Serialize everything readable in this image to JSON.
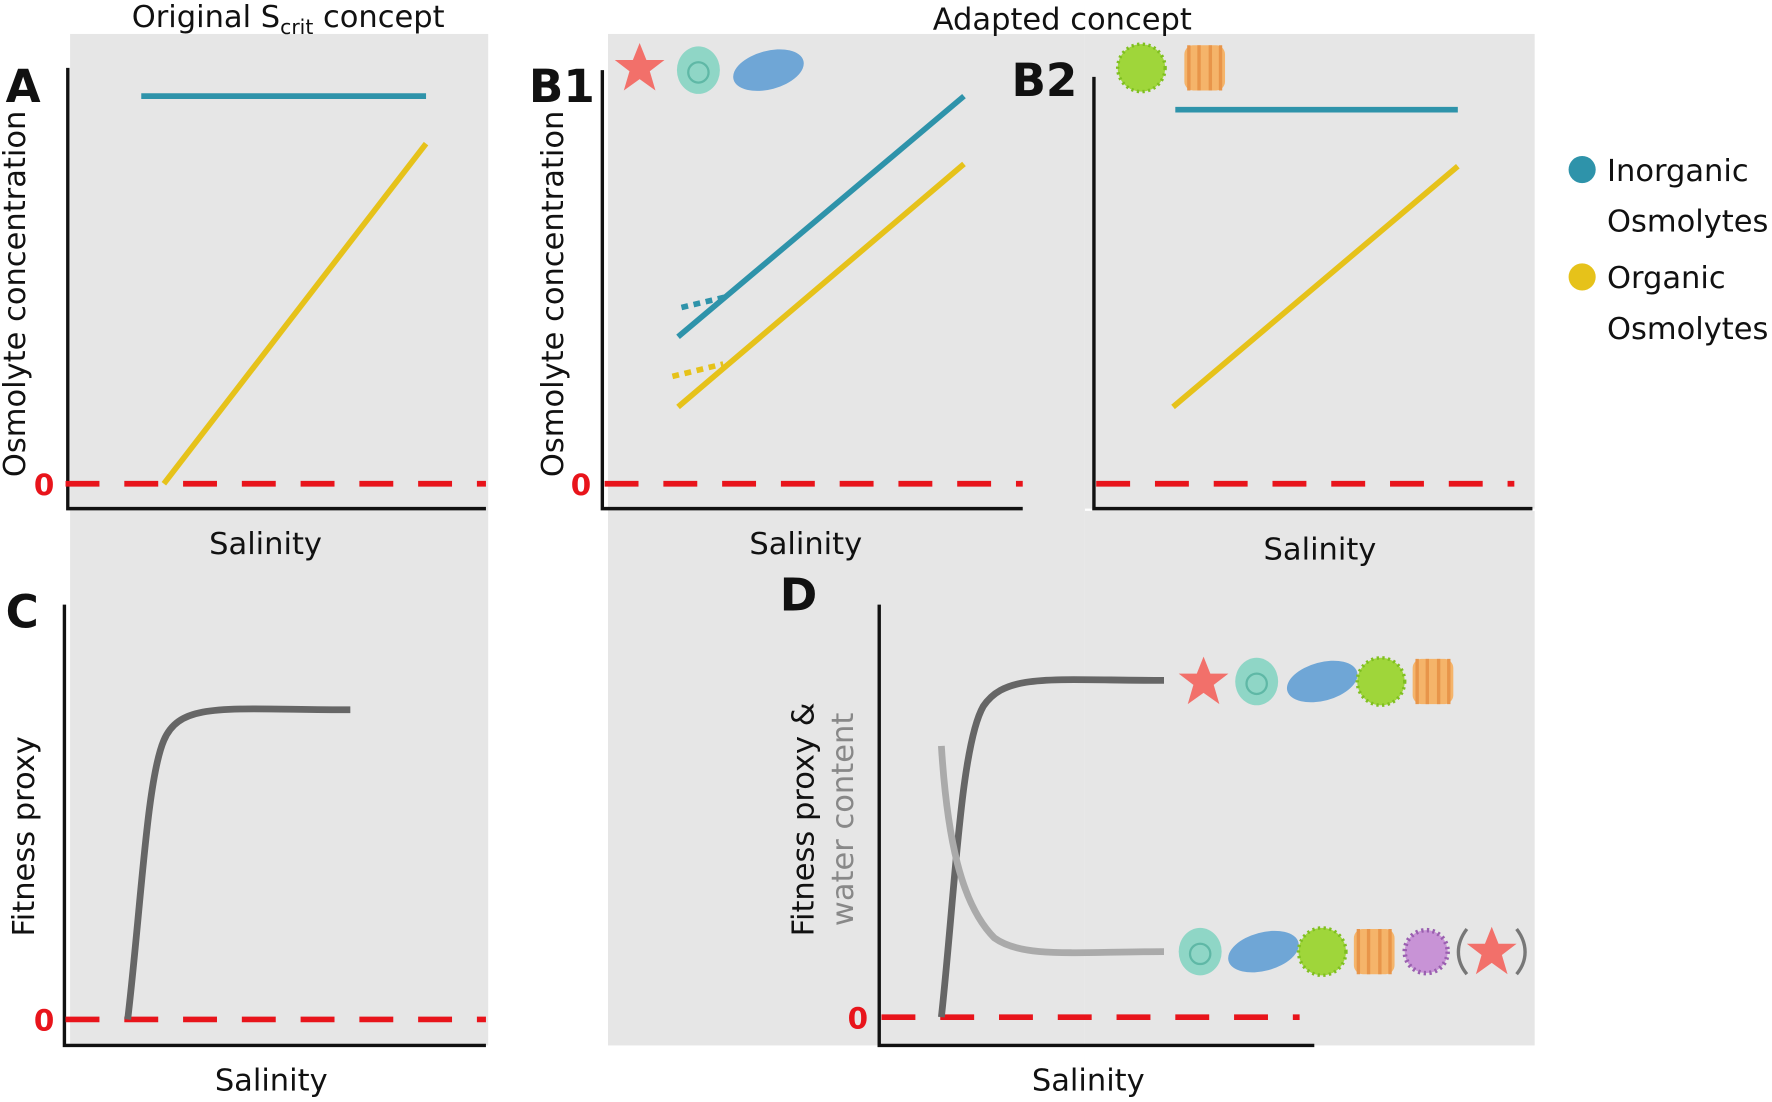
{
  "headers": {
    "left": {
      "main": "Original S",
      "sub": "crit",
      "rest": " concept"
    },
    "right": "Adapted concept"
  },
  "panels": {
    "A": {
      "label": "A",
      "y_label": "Osmolyte concentration",
      "x_label": "Salinity",
      "zero": "0"
    },
    "B1": {
      "label": "B1",
      "y_label": "Osmolyte concentration",
      "x_label": "Salinity",
      "zero": "0"
    },
    "B2": {
      "label": "B2",
      "x_label": "Salinity"
    },
    "C": {
      "label": "C",
      "y_label": "Fitness proxy",
      "x_label": "Salinity",
      "zero": "0"
    },
    "D": {
      "label": "D",
      "y_label_1": "Fitness proxy &",
      "y_label_2": "water content",
      "x_label": "Salinity",
      "zero": "0"
    }
  },
  "legend": [
    {
      "line1": "Inorganic",
      "line2": "Osmolytes",
      "color": "#2e93aa"
    },
    {
      "line1": "Organic",
      "line2": "Osmolytes",
      "color": "#e6c21a"
    }
  ]
}
